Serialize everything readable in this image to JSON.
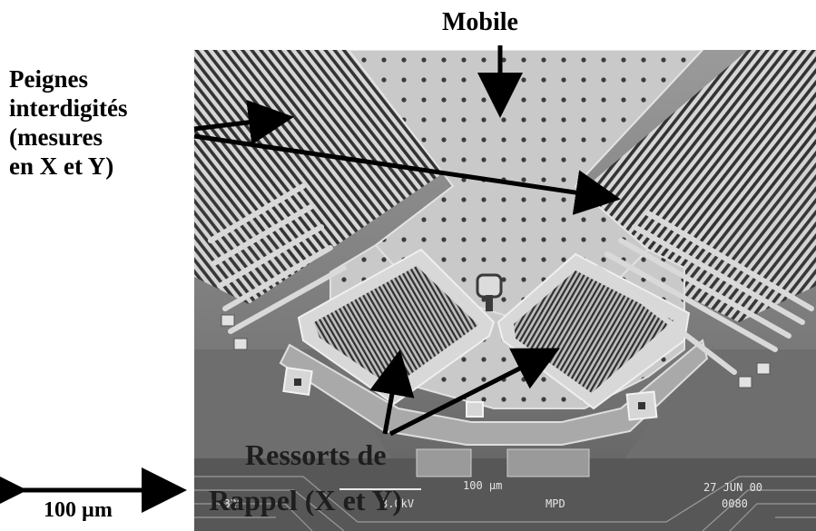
{
  "title": "Mobile",
  "labels": {
    "peignes": [
      "Peignes",
      "interdigités",
      "(mesures",
      "en X et Y)"
    ],
    "ressorts_line1": "Ressorts de",
    "ressorts_line2": "Rappel (X et Y)",
    "scale": "100 µm"
  },
  "sem_info": {
    "scale_bar": "100 µm",
    "left_code": "P-329",
    "mid_code": "MPD",
    "date": "27 JUN 00",
    "number": "0080",
    "voltage": "3.0kV"
  },
  "colors": {
    "text": "#000000",
    "sem_dark": "#3a3a3a",
    "sem_mid": "#8a8a8a",
    "sem_light": "#c8c8c8"
  }
}
